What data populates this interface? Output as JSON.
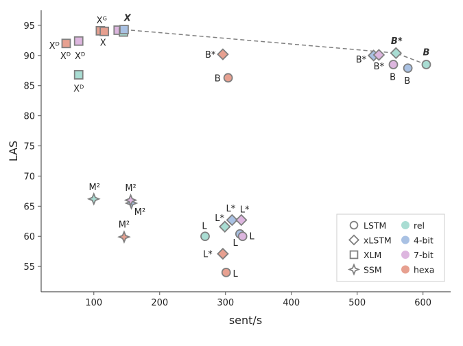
{
  "chart_data": {
    "type": "scatter",
    "xlabel": "sent/s",
    "ylabel": "LAS",
    "xlim": [
      20,
      642
    ],
    "ylim": [
      50.8,
      97.5
    ],
    "xticks": [
      100,
      200,
      300,
      400,
      500,
      600
    ],
    "yticks": [
      55,
      60,
      65,
      70,
      75,
      80,
      85,
      90,
      95
    ],
    "grid": false,
    "legend_placement": "bottom-right",
    "colors": {
      "rel": "#a9ddd3",
      "4-bit": "#a9c1e3",
      "7-bit": "#ddb6df",
      "hexa": "#e7a090",
      "edge": "#7f7f7f"
    },
    "legend": {
      "markers": [
        {
          "shape": "circle",
          "label": "LSTM"
        },
        {
          "shape": "diamond",
          "label": "xLSTM"
        },
        {
          "shape": "square",
          "label": "XLM"
        },
        {
          "shape": "star",
          "label": "SSM"
        }
      ],
      "encodings": [
        {
          "color": "rel",
          "label": "rel"
        },
        {
          "color": "4-bit",
          "label": "4-bit"
        },
        {
          "color": "7-bit",
          "label": "7-bit"
        },
        {
          "color": "hexa",
          "label": "hexa"
        }
      ]
    },
    "points": [
      {
        "model": "XLM",
        "enc": "hexa",
        "x": 58,
        "y": 92.0
      },
      {
        "model": "XLM",
        "enc": "7-bit",
        "x": 77,
        "y": 92.4
      },
      {
        "model": "XLM",
        "enc": "rel",
        "x": 77,
        "y": 86.8
      },
      {
        "model": "XLM",
        "enc": "hexa",
        "x": 110,
        "y": 94.1
      },
      {
        "model": "XLM",
        "enc": "hexa",
        "x": 116,
        "y": 94.0
      },
      {
        "model": "XLM",
        "enc": "7-bit",
        "x": 137,
        "y": 94.2
      },
      {
        "model": "XLM",
        "enc": "rel",
        "x": 145,
        "y": 93.9
      },
      {
        "model": "XLM",
        "enc": "4-bit",
        "x": 146,
        "y": 94.3
      },
      {
        "model": "xLSTM",
        "enc": "hexa",
        "x": 296,
        "y": 90.2
      },
      {
        "model": "LSTM",
        "enc": "hexa",
        "x": 304,
        "y": 86.3
      },
      {
        "model": "xLSTM",
        "enc": "4-bit",
        "x": 525,
        "y": 90.0
      },
      {
        "model": "xLSTM",
        "enc": "7-bit",
        "x": 533,
        "y": 90.1
      },
      {
        "model": "xLSTM",
        "enc": "rel",
        "x": 559,
        "y": 90.4
      },
      {
        "model": "LSTM",
        "enc": "7-bit",
        "x": 555,
        "y": 88.5
      },
      {
        "model": "LSTM",
        "enc": "4-bit",
        "x": 577,
        "y": 87.9
      },
      {
        "model": "LSTM",
        "enc": "rel",
        "x": 605,
        "y": 88.5
      },
      {
        "model": "SSM",
        "enc": "rel",
        "x": 100,
        "y": 66.2
      },
      {
        "model": "SSM",
        "enc": "4-bit",
        "x": 157,
        "y": 65.5
      },
      {
        "model": "SSM",
        "enc": "7-bit",
        "x": 156,
        "y": 66.0
      },
      {
        "model": "SSM",
        "enc": "hexa",
        "x": 146,
        "y": 59.9
      },
      {
        "model": "LSTM",
        "enc": "rel",
        "x": 269,
        "y": 60.0
      },
      {
        "model": "xLSTM",
        "enc": "rel",
        "x": 299,
        "y": 61.6
      },
      {
        "model": "xLSTM",
        "enc": "4-bit",
        "x": 310,
        "y": 62.7
      },
      {
        "model": "xLSTM",
        "enc": "7-bit",
        "x": 324,
        "y": 62.7
      },
      {
        "model": "LSTM",
        "enc": "4-bit",
        "x": 322,
        "y": 60.4
      },
      {
        "model": "LSTM",
        "enc": "7-bit",
        "x": 326,
        "y": 60.0
      },
      {
        "model": "xLSTM",
        "enc": "hexa",
        "x": 296,
        "y": 57.1
      },
      {
        "model": "LSTM",
        "enc": "hexa",
        "x": 301,
        "y": 54.0
      }
    ],
    "pareto_front": [
      [
        146,
        94.3
      ],
      [
        559,
        90.4
      ],
      [
        605,
        88.5
      ]
    ],
    "annotations": [
      {
        "text": "Xᴰ",
        "x": 40,
        "y": 91.7
      },
      {
        "text": "Xᴰ",
        "x": 57,
        "y": 90.0
      },
      {
        "text": "Xᴰ",
        "x": 79,
        "y": 90.0
      },
      {
        "text": "Xᴰ",
        "x": 77,
        "y": 84.6
      },
      {
        "text": "Xᴳ",
        "x": 112,
        "y": 95.9
      },
      {
        "text": "X",
        "x": 114,
        "y": 92.2
      },
      {
        "text": "X",
        "x": 151,
        "y": 96.3,
        "emphasis": true
      },
      {
        "text": "B*",
        "x": 277,
        "y": 90.2
      },
      {
        "text": "B",
        "x": 288,
        "y": 86.3
      },
      {
        "text": "B*",
        "x": 560,
        "y": 92.5,
        "emphasis": true
      },
      {
        "text": "B*",
        "x": 506,
        "y": 89.4
      },
      {
        "text": "B*",
        "x": 533,
        "y": 88.3
      },
      {
        "text": "B",
        "x": 554,
        "y": 86.5
      },
      {
        "text": "B",
        "x": 576,
        "y": 85.9
      },
      {
        "text": "B",
        "x": 605,
        "y": 90.6,
        "emphasis": true
      },
      {
        "text": "M²",
        "x": 101,
        "y": 68.2
      },
      {
        "text": "M²",
        "x": 156,
        "y": 68.1
      },
      {
        "text": "M²",
        "x": 170,
        "y": 64.1
      },
      {
        "text": "M²",
        "x": 146,
        "y": 62.0
      },
      {
        "text": "L",
        "x": 268,
        "y": 61.8
      },
      {
        "text": "L*",
        "x": 291,
        "y": 63.1
      },
      {
        "text": "L*",
        "x": 308,
        "y": 64.7
      },
      {
        "text": "L*",
        "x": 329,
        "y": 64.5
      },
      {
        "text": "L",
        "x": 315,
        "y": 59.0
      },
      {
        "text": "L",
        "x": 340,
        "y": 60.1
      },
      {
        "text": "L*",
        "x": 273,
        "y": 57.1
      },
      {
        "text": "L",
        "x": 315,
        "y": 53.9
      }
    ]
  }
}
